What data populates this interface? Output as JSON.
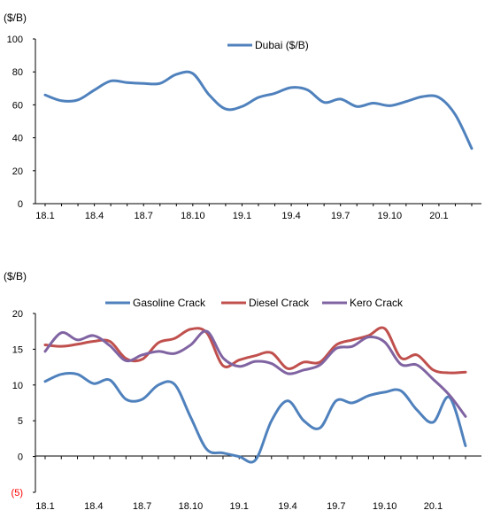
{
  "colors": {
    "dubai": "#4f81bd",
    "gasoline": "#4f81bd",
    "diesel": "#c0504d",
    "kero": "#8064a2",
    "negative_tick": "#ff0000",
    "axis": "#000000"
  },
  "chart_data": [
    {
      "type": "line",
      "unit_label": "($/B)",
      "x": [
        "18.1",
        "18.2",
        "18.3",
        "18.4",
        "18.5",
        "18.6",
        "18.7",
        "18.8",
        "18.9",
        "18.10",
        "18.11",
        "18.12",
        "19.1",
        "19.2",
        "19.3",
        "19.4",
        "19.5",
        "19.6",
        "19.7",
        "19.8",
        "19.9",
        "19.10",
        "19.11",
        "19.12",
        "20.1",
        "20.2",
        "20.3"
      ],
      "x_tick_labels": [
        "18.1",
        "18.4",
        "18.7",
        "18.10",
        "19.1",
        "19.4",
        "19.7",
        "19.10",
        "20.1"
      ],
      "y_tick_labels": [
        "0",
        "20",
        "40",
        "60",
        "80",
        "100"
      ],
      "ylim": [
        0,
        100
      ],
      "grid": false,
      "legend_position": "top-center",
      "series": [
        {
          "name": "Dubai ($/B)",
          "values": [
            66,
            62.5,
            63,
            69,
            74.5,
            73.5,
            73,
            73,
            78.5,
            79,
            66,
            57.5,
            59,
            64.5,
            67,
            70.5,
            69,
            61.5,
            63.5,
            59,
            61,
            59.5,
            62,
            65,
            64.5,
            54,
            33.5
          ]
        }
      ]
    },
    {
      "type": "line",
      "unit_label": "($/B)",
      "x": [
        "18.1",
        "18.2",
        "18.3",
        "18.4",
        "18.5",
        "18.6",
        "18.7",
        "18.8",
        "18.9",
        "18.10",
        "18.11",
        "18.12",
        "19.1",
        "19.2",
        "19.3",
        "19.4",
        "19.5",
        "19.6",
        "19.7",
        "19.8",
        "19.9",
        "19.10",
        "19.11",
        "19.12",
        "20.1",
        "20.2",
        "20.3"
      ],
      "x_tick_labels": [
        "18.1",
        "18.4",
        "18.7",
        "18.10",
        "19.1",
        "19.4",
        "19.7",
        "19.10",
        "20.1"
      ],
      "y_tick_labels": [
        "(5)",
        "0",
        "5",
        "10",
        "15",
        "20"
      ],
      "ylim": [
        -5,
        20
      ],
      "grid": false,
      "legend_position": "top-right",
      "series": [
        {
          "name": "Gasoline Crack",
          "values": [
            10.5,
            11.5,
            11.5,
            10.2,
            10.7,
            8,
            8,
            10,
            10.1,
            5.5,
            1,
            0.5,
            0,
            -0.5,
            5,
            7.8,
            5,
            4,
            7.8,
            7.5,
            8.5,
            9,
            9.2,
            6.5,
            4.8,
            8.3,
            1.5
          ]
        },
        {
          "name": "Diesel Crack",
          "values": [
            15.6,
            15.4,
            15.7,
            16.1,
            16.1,
            13.7,
            13.6,
            15.9,
            16.5,
            17.8,
            17.3,
            12.7,
            13.5,
            14.1,
            14.5,
            12.3,
            13.2,
            13.2,
            15.6,
            16.3,
            16.9,
            17.9,
            13.8,
            14.2,
            12.1,
            11.7,
            11.8
          ]
        },
        {
          "name": "Kero Crack",
          "values": [
            14.7,
            17.3,
            16.3,
            16.9,
            15.5,
            13.4,
            14.2,
            14.7,
            14.4,
            15.6,
            17.5,
            13.8,
            12.6,
            13.3,
            13.0,
            11.6,
            12.1,
            12.8,
            15.1,
            15.4,
            16.7,
            16.0,
            12.9,
            12.8,
            10.8,
            8.6,
            5.6
          ]
        }
      ]
    }
  ]
}
